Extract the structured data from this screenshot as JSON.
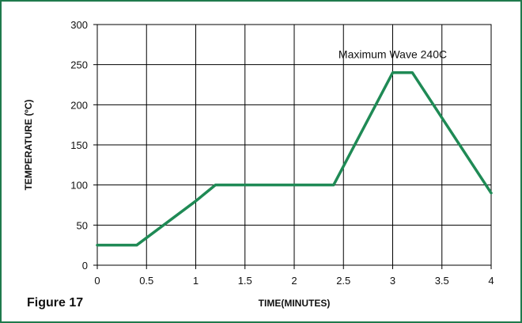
{
  "figure": {
    "label": "Figure 17"
  },
  "colors": {
    "frame": "#1f7a4d",
    "series": "#1f8a55",
    "grid": "#000000",
    "text": "#111111"
  },
  "chart_data": {
    "type": "line",
    "xlabel": "TIME(MINUTES)",
    "ylabel": "TEMPERATURE (ºC)",
    "xlim": [
      0,
      4
    ],
    "ylim": [
      0,
      300
    ],
    "xticks": [
      0,
      0.5,
      1,
      1.5,
      2,
      2.5,
      3,
      3.5,
      4
    ],
    "xtick_labels": [
      "0",
      "0.5",
      "1",
      "1.5",
      "2",
      "2.5",
      "3",
      "3.5",
      "4"
    ],
    "yticks": [
      0,
      50,
      100,
      150,
      200,
      250,
      300
    ],
    "ytick_labels": [
      "0",
      "50",
      "100",
      "150",
      "200",
      "250",
      "300"
    ],
    "grid": true,
    "series": [
      {
        "x": [
          0,
          0.4,
          1.0,
          1.2,
          2.4,
          3.0,
          3.2,
          4.0
        ],
        "y": [
          25,
          25,
          80,
          100,
          100,
          240,
          240,
          90
        ]
      }
    ],
    "annotations": [
      {
        "text": "Maximum Wave 240C",
        "x": 3.0,
        "y": 258
      }
    ]
  }
}
